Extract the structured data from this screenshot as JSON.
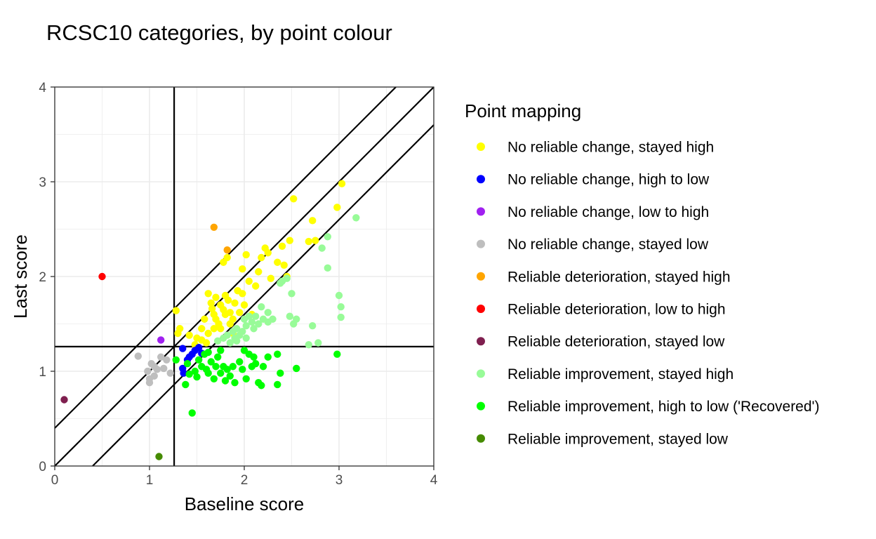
{
  "chart_data": {
    "type": "scatter",
    "title": "RCSC10 categories, by point colour",
    "xlabel": "Baseline score",
    "ylabel": "Last score",
    "xlim": [
      0,
      4
    ],
    "ylim": [
      0,
      4
    ],
    "xticks": [
      "0",
      "1",
      "2",
      "3",
      "4"
    ],
    "yticks": [
      "0",
      "1",
      "2",
      "3",
      "4"
    ],
    "grid": true,
    "cutoff": 1.26,
    "reliable_change_offset": 0.4,
    "legend": {
      "title": "Point mapping",
      "placement": "right"
    },
    "series": [
      {
        "name": "No reliable change, stayed high",
        "color": "#ffff00",
        "points": [
          [
            1.28,
            1.64
          ],
          [
            1.32,
            1.45
          ],
          [
            1.3,
            1.4
          ],
          [
            1.42,
            1.38
          ],
          [
            1.5,
            1.35
          ],
          [
            1.55,
            1.33
          ],
          [
            1.48,
            1.28
          ],
          [
            1.6,
            1.3
          ],
          [
            1.62,
            1.82
          ],
          [
            1.65,
            1.72
          ],
          [
            1.66,
            1.66
          ],
          [
            1.68,
            1.6
          ],
          [
            1.7,
            1.55
          ],
          [
            1.73,
            1.5
          ],
          [
            1.75,
            1.45
          ],
          [
            1.62,
            1.4
          ],
          [
            1.55,
            1.45
          ],
          [
            1.68,
            1.45
          ],
          [
            1.75,
            1.7
          ],
          [
            1.78,
            1.65
          ],
          [
            1.8,
            1.8
          ],
          [
            1.83,
            1.75
          ],
          [
            1.85,
            1.62
          ],
          [
            1.88,
            1.55
          ],
          [
            1.85,
            1.5
          ],
          [
            1.8,
            1.6
          ],
          [
            1.78,
            2.15
          ],
          [
            1.82,
            2.2
          ],
          [
            1.9,
            1.72
          ],
          [
            1.93,
            1.85
          ],
          [
            1.98,
            1.82
          ],
          [
            2.0,
            1.7
          ],
          [
            2.02,
            2.23
          ],
          [
            2.05,
            1.95
          ],
          [
            1.98,
            2.08
          ],
          [
            2.12,
            1.9
          ],
          [
            2.15,
            2.05
          ],
          [
            2.18,
            2.2
          ],
          [
            2.22,
            2.3
          ],
          [
            2.25,
            2.25
          ],
          [
            2.28,
            1.98
          ],
          [
            2.35,
            2.15
          ],
          [
            2.4,
            2.32
          ],
          [
            2.42,
            2.12
          ],
          [
            2.48,
            2.38
          ],
          [
            2.45,
            2.0
          ],
          [
            2.52,
            2.82
          ],
          [
            2.68,
            2.37
          ],
          [
            2.72,
            2.59
          ],
          [
            2.75,
            2.38
          ],
          [
            2.98,
            2.73
          ],
          [
            3.03,
            2.98
          ],
          [
            1.7,
            1.78
          ],
          [
            1.88,
            1.4
          ],
          [
            2.08,
            1.6
          ],
          [
            1.58,
            1.55
          ],
          [
            1.95,
            1.62
          ]
        ]
      },
      {
        "name": "No reliable change, high to low",
        "color": "#0000ff",
        "points": [
          [
            1.35,
            1.24
          ],
          [
            1.35,
            1.03
          ],
          [
            1.36,
            0.98
          ],
          [
            1.42,
            1.15
          ],
          [
            1.45,
            1.18
          ],
          [
            1.48,
            1.22
          ],
          [
            1.52,
            1.25
          ],
          [
            1.55,
            1.19
          ],
          [
            1.4,
            1.12
          ]
        ]
      },
      {
        "name": "No reliable change, low to high",
        "color": "#a020f0",
        "points": [
          [
            1.12,
            1.33
          ]
        ]
      },
      {
        "name": "No reliable change, stayed low",
        "color": "#bebebe",
        "points": [
          [
            0.88,
            1.16
          ],
          [
            0.98,
            1.0
          ],
          [
            1.0,
            0.92
          ],
          [
            1.0,
            0.88
          ],
          [
            1.02,
            1.08
          ],
          [
            1.05,
            0.95
          ],
          [
            1.08,
            1.02
          ],
          [
            1.12,
            1.15
          ],
          [
            1.15,
            1.03
          ],
          [
            1.18,
            1.12
          ],
          [
            1.22,
            0.98
          ],
          [
            1.05,
            1.05
          ]
        ]
      },
      {
        "name": "Reliable deterioration, stayed high",
        "color": "#ffa500",
        "points": [
          [
            1.68,
            2.52
          ],
          [
            1.82,
            2.28
          ]
        ]
      },
      {
        "name": "Reliable deterioration, low to high",
        "color": "#ff0000",
        "points": [
          [
            0.5,
            2.0
          ]
        ]
      },
      {
        "name": "Reliable deterioration, stayed low",
        "color": "#7f1f4f",
        "points": [
          [
            0.1,
            0.7
          ]
        ]
      },
      {
        "name": "Reliable improvement, stayed high",
        "color": "#98fb98",
        "points": [
          [
            1.72,
            1.32
          ],
          [
            1.78,
            1.35
          ],
          [
            1.82,
            1.38
          ],
          [
            1.85,
            1.3
          ],
          [
            1.88,
            1.42
          ],
          [
            1.9,
            1.35
          ],
          [
            1.92,
            1.45
          ],
          [
            1.95,
            1.38
          ],
          [
            1.98,
            1.42
          ],
          [
            2.0,
            1.55
          ],
          [
            2.02,
            1.48
          ],
          [
            2.05,
            1.58
          ],
          [
            2.08,
            1.52
          ],
          [
            2.1,
            1.45
          ],
          [
            2.12,
            1.58
          ],
          [
            2.15,
            1.5
          ],
          [
            2.18,
            1.68
          ],
          [
            2.2,
            1.55
          ],
          [
            2.25,
            1.52
          ],
          [
            2.3,
            1.55
          ],
          [
            2.38,
            1.93
          ],
          [
            2.4,
            1.95
          ],
          [
            2.45,
            1.98
          ],
          [
            2.48,
            1.58
          ],
          [
            2.5,
            1.82
          ],
          [
            2.52,
            1.5
          ],
          [
            2.55,
            1.55
          ],
          [
            2.68,
            1.28
          ],
          [
            2.72,
            1.48
          ],
          [
            2.78,
            1.3
          ],
          [
            2.82,
            2.3
          ],
          [
            2.88,
            2.42
          ],
          [
            2.88,
            2.09
          ],
          [
            3.0,
            1.8
          ],
          [
            3.02,
            1.68
          ],
          [
            3.02,
            1.57
          ],
          [
            3.18,
            2.62
          ],
          [
            1.92,
            1.32
          ],
          [
            2.02,
            1.35
          ],
          [
            2.25,
            1.62
          ]
        ]
      },
      {
        "name": "Reliable improvement, high to low ('Recovered')",
        "color": "#00ff00",
        "points": [
          [
            1.28,
            1.12
          ],
          [
            1.38,
            0.86
          ],
          [
            1.4,
            1.08
          ],
          [
            1.42,
            0.97
          ],
          [
            1.45,
            0.56
          ],
          [
            1.48,
            1.0
          ],
          [
            1.5,
            0.94
          ],
          [
            1.52,
            1.12
          ],
          [
            1.55,
            1.05
          ],
          [
            1.58,
            1.18
          ],
          [
            1.6,
            1.02
          ],
          [
            1.62,
            0.98
          ],
          [
            1.65,
            1.1
          ],
          [
            1.68,
            0.92
          ],
          [
            1.7,
            1.05
          ],
          [
            1.72,
            1.15
          ],
          [
            1.75,
            0.98
          ],
          [
            1.78,
            1.05
          ],
          [
            1.8,
            0.9
          ],
          [
            1.82,
            1.02
          ],
          [
            1.85,
            0.95
          ],
          [
            1.88,
            1.05
          ],
          [
            1.9,
            0.88
          ],
          [
            1.95,
            1.1
          ],
          [
            1.98,
            1.02
          ],
          [
            2.0,
            1.22
          ],
          [
            2.02,
            0.92
          ],
          [
            2.05,
            1.18
          ],
          [
            2.08,
            1.05
          ],
          [
            2.12,
            1.08
          ],
          [
            2.15,
            0.88
          ],
          [
            2.18,
            0.85
          ],
          [
            2.2,
            1.05
          ],
          [
            2.25,
            1.15
          ],
          [
            2.35,
            1.18
          ],
          [
            2.38,
            0.98
          ],
          [
            2.35,
            0.86
          ],
          [
            2.55,
            1.03
          ],
          [
            2.98,
            1.18
          ],
          [
            1.62,
            1.2
          ],
          [
            1.75,
            1.22
          ],
          [
            2.1,
            1.15
          ]
        ]
      },
      {
        "name": "Reliable improvement, stayed low",
        "color": "#458b00",
        "points": [
          [
            1.1,
            0.1
          ]
        ]
      }
    ]
  }
}
